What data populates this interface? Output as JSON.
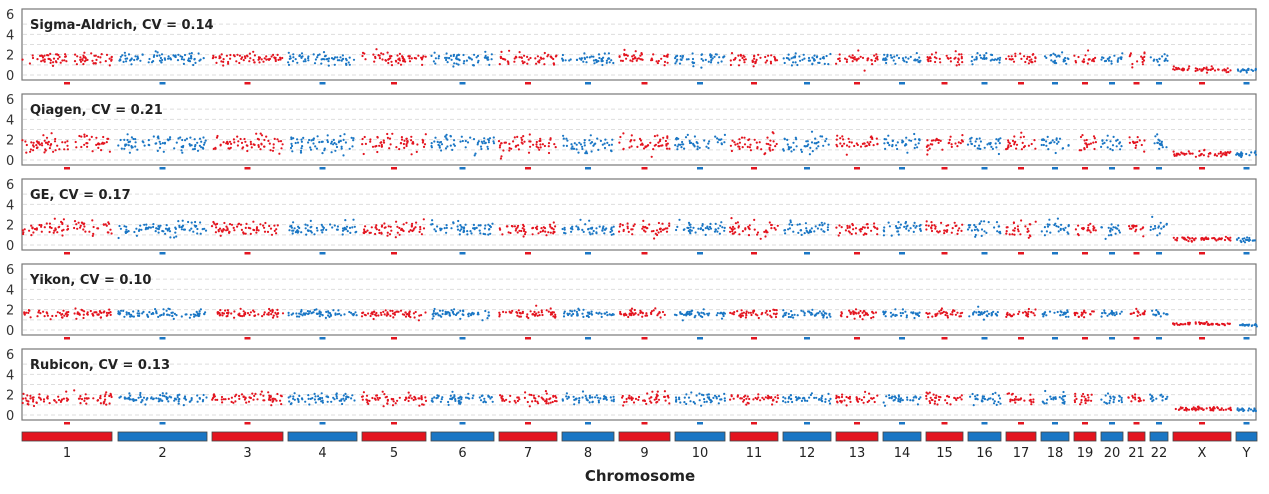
{
  "chart_data": {
    "type": "scatter",
    "xlabel": "Chromosome",
    "ylabel": "",
    "ylim": [
      0,
      6
    ],
    "yticks": [
      "0",
      "2",
      "4",
      "6"
    ],
    "grid": true,
    "colors": {
      "odd": "#e3141f",
      "even": "#1a76c4",
      "frame": "#777777"
    },
    "chromosomes": [
      "1",
      "2",
      "3",
      "4",
      "5",
      "6",
      "7",
      "8",
      "9",
      "10",
      "11",
      "12",
      "13",
      "14",
      "15",
      "16",
      "17",
      "18",
      "19",
      "20",
      "21",
      "22",
      "X",
      "Y"
    ],
    "chromosome_colors": [
      "red",
      "blue",
      "red",
      "blue",
      "red",
      "blue",
      "red",
      "blue",
      "red",
      "blue",
      "red",
      "blue",
      "red",
      "blue",
      "red",
      "blue",
      "red",
      "blue",
      "red",
      "blue",
      "red",
      "blue",
      "red",
      "blue"
    ],
    "panels": [
      {
        "title": "Sigma-Aldrich, CV = 0.14",
        "cv": 0.14,
        "autosome_level": 1.6,
        "x_level": 0.6,
        "y_level": 0.5
      },
      {
        "title": "Qiagen, CV = 0.21",
        "cv": 0.21,
        "autosome_level": 1.6,
        "x_level": 0.6,
        "y_level": 0.5
      },
      {
        "title": "GE, CV = 0.17",
        "cv": 0.17,
        "autosome_level": 1.6,
        "x_level": 0.6,
        "y_level": 0.5
      },
      {
        "title": "Yikon, CV = 0.10",
        "cv": 0.1,
        "autosome_level": 1.6,
        "x_level": 0.6,
        "y_level": 0.5
      },
      {
        "title": "Rubicon, CV = 0.13",
        "cv": 0.13,
        "autosome_level": 1.6,
        "x_level": 0.6,
        "y_level": 0.5
      }
    ]
  }
}
